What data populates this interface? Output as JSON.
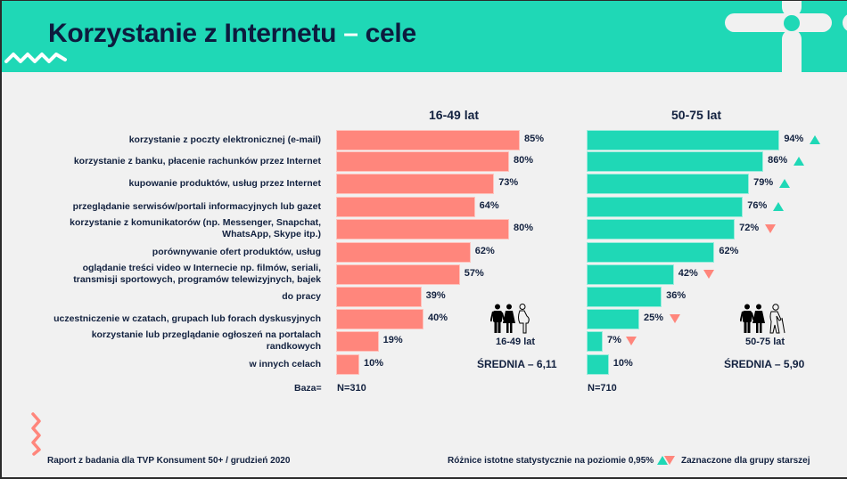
{
  "header": {
    "title_main": "Korzystanie z Internetu",
    "title_dash": "–",
    "title_end": "cele"
  },
  "colors": {
    "teal": "#1fd8b6",
    "salmon": "#ff867c",
    "navy": "#12213f",
    "background": "#f1f1f1"
  },
  "chart_data": {
    "type": "bar",
    "orientation": "horizontal",
    "title": "Korzystanie z Internetu – cele",
    "categories": [
      "korzystanie z poczty elektronicznej (e-mail)",
      "korzystanie z banku, płacenie rachunków przez Internet",
      "kupowanie produktów, usług przez Internet",
      "przeglądanie serwisów/portali informacyjnych lub gazet",
      "korzystanie z komunikatorów (np. Messenger, Snapchat, WhatsApp, Skype itp.)",
      "porównywanie ofert produktów, usług",
      "oglądanie treści video w Internecie np. filmów, seriali, transmisji sportowych, programów telewizyjnych, bajek",
      "do pracy",
      "uczestniczenie w czatach, grupach lub forach dyskusyjnych",
      "korzystanie lub przeglądanie ogłoszeń na portalach randkowych",
      "w innych celach"
    ],
    "category_lines": [
      [
        "korzystanie z poczty elektronicznej (e-mail)"
      ],
      [
        "korzystanie z banku, płacenie rachunków przez Internet"
      ],
      [
        "kupowanie produktów, usług przez Internet"
      ],
      [
        "przeglądanie serwisów/portali informacyjnych lub gazet"
      ],
      [
        "korzystanie z komunikatorów (np. Messenger, Snapchat,",
        "WhatsApp, Skype itp.)"
      ],
      [
        "porównywanie ofert produktów, usług"
      ],
      [
        "oglądanie treści video w Internecie np. filmów, seriali,",
        "transmisji sportowych, programów telewizyjnych, bajek"
      ],
      [
        "do pracy"
      ],
      [
        "uczestniczenie w czatach, grupach lub forach dyskusyjnych"
      ],
      [
        "korzystanie lub przeglądanie ogłoszeń na portalach",
        "randkowych"
      ],
      [
        "w innych celach"
      ]
    ],
    "series": [
      {
        "name": "16-49 lat",
        "color": "#ff867c",
        "values": [
          85,
          80,
          73,
          64,
          80,
          62,
          57,
          39,
          40,
          19,
          10
        ],
        "labels": [
          "85%",
          "80%",
          "73%",
          "64%",
          "80%",
          "62%",
          "57%",
          "39%",
          "40%",
          "19%",
          "10%"
        ],
        "base": "N=310",
        "mean_label": "ŚREDNIA – 6,11",
        "group_label": "16-49 lat"
      },
      {
        "name": "50-75 lat",
        "color": "#1fd8b6",
        "values": [
          94,
          86,
          79,
          76,
          72,
          62,
          42,
          36,
          25,
          7,
          10
        ],
        "labels": [
          "94%",
          "86%",
          "79%",
          "76%",
          "72%",
          "62%",
          "42%",
          "36%",
          "25%",
          "7%",
          "10%"
        ],
        "significance": [
          "up",
          "up",
          "up",
          "up",
          "down",
          null,
          "down",
          null,
          "down",
          "down",
          null
        ],
        "base": "N=710",
        "mean_label": "ŚREDNIA – 5,90",
        "group_label": "50-75 lat"
      }
    ],
    "base_label": "Baza=",
    "xlim": [
      0,
      100
    ],
    "grid": false,
    "legend": "bottom-right"
  },
  "footer": {
    "source": "Raport z badania dla TVP Konsument 50+ / grudzień 2020",
    "significance_note": "Różnice istotne statystycznie na poziomie 0,95%",
    "marked_note": "Zaznaczone dla grupy starszej"
  }
}
